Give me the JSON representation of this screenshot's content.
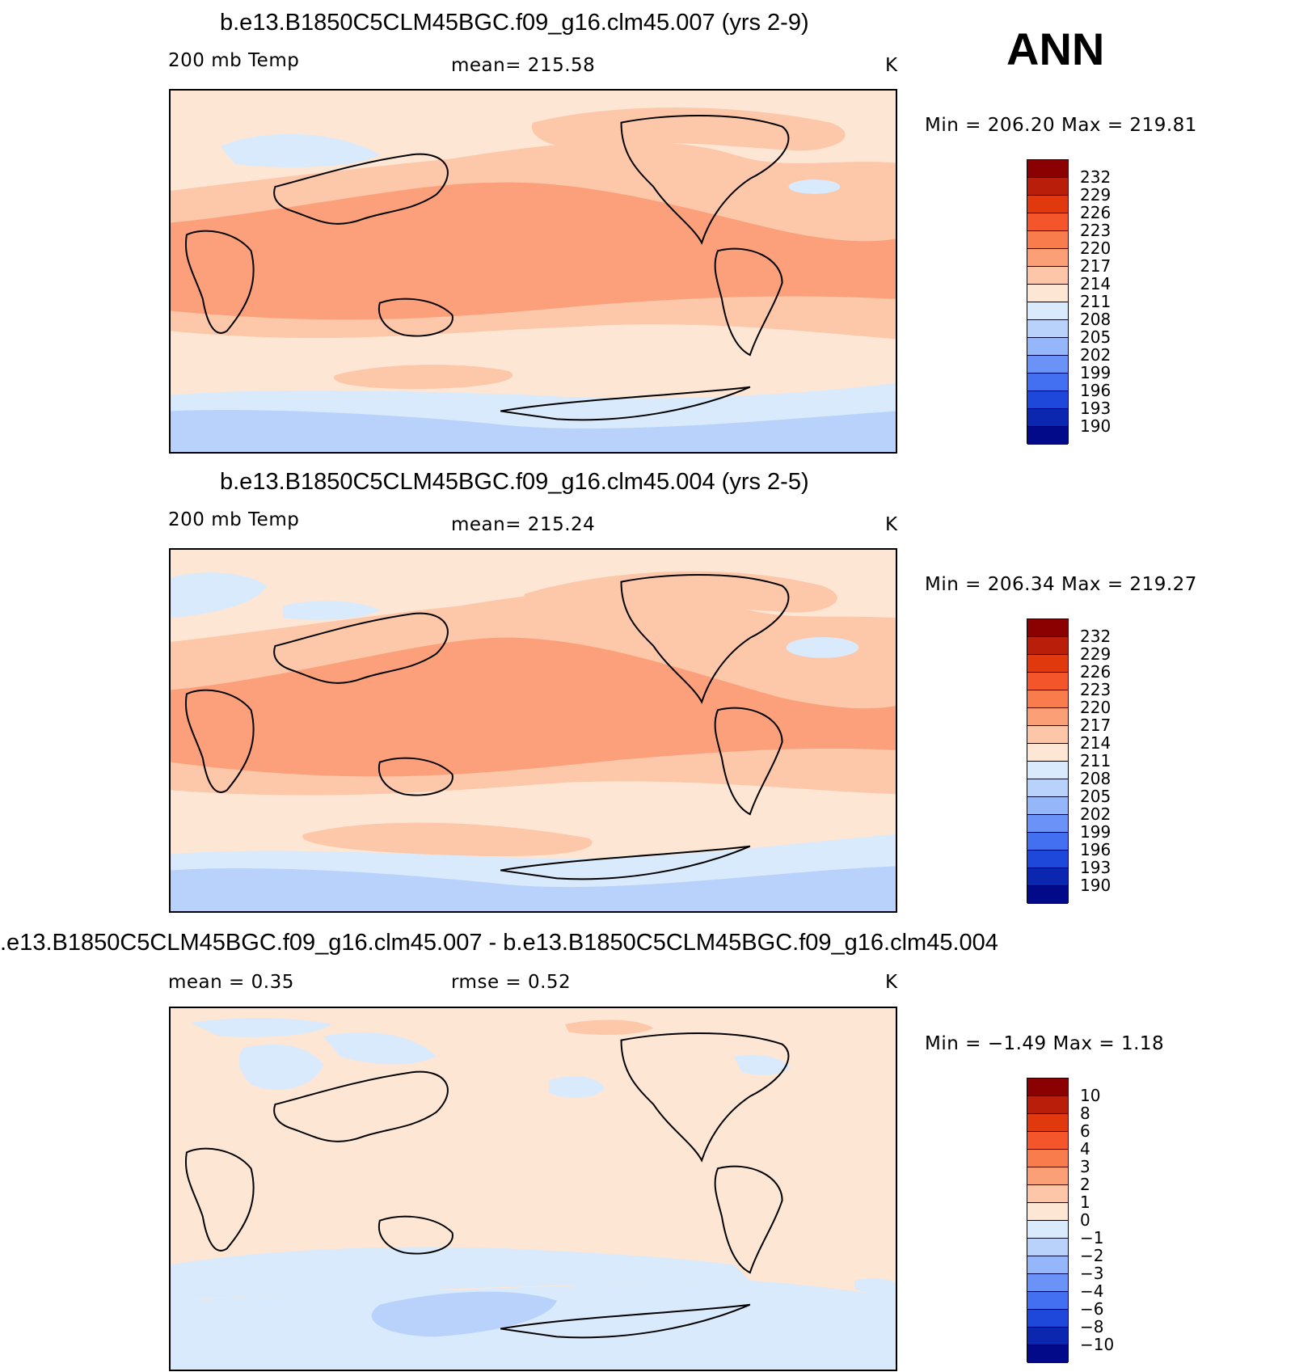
{
  "page_title": "ANN",
  "panels": [
    {
      "title": "b.e13.B1850C5CLM45BGC.f09_g16.clm45.007 (yrs 2-9)",
      "variable": "200 mb Temp",
      "stat": "mean=  215.58",
      "units": "K",
      "minmax": "Min  =  206.20  Max  =  219.81"
    },
    {
      "title": "b.e13.B1850C5CLM45BGC.f09_g16.clm45.004 (yrs 2-5)",
      "variable": "200 mb Temp",
      "stat": "mean=  215.24",
      "units": "K",
      "minmax": "Min  =  206.34  Max  =  219.27"
    },
    {
      "title": ".e13.B1850C5CLM45BGC.f09_g16.clm45.007 - b.e13.B1850C5CLM45BGC.f09_g16.clm45.004",
      "mean": "mean  =      0.35",
      "rmse": "rmse  =      0.52",
      "units": "K",
      "minmax": "Min  =    −1.49  Max  =      1.18"
    }
  ],
  "colorbar_abs": {
    "labels": [
      "232",
      "229",
      "226",
      "223",
      "220",
      "217",
      "214",
      "211",
      "208",
      "205",
      "202",
      "199",
      "196",
      "193",
      "190"
    ],
    "colors": [
      "#8b0000",
      "#b81e0a",
      "#e1390e",
      "#f4552a",
      "#f87c4c",
      "#fb9f76",
      "#fdc6a8",
      "#fee6d4",
      "#d8eafc",
      "#b9d2fb",
      "#95b7fa",
      "#6b93f7",
      "#4270f0",
      "#1e48d9",
      "#0b27b0",
      "#020a8a"
    ]
  },
  "colorbar_diff": {
    "labels": [
      "10",
      "8",
      "6",
      "4",
      "3",
      "2",
      "1",
      "0",
      "−1",
      "−2",
      "−3",
      "−4",
      "−6",
      "−8",
      "−10"
    ],
    "colors": [
      "#8b0000",
      "#b81e0a",
      "#e1390e",
      "#f4552a",
      "#f87c4c",
      "#fb9f76",
      "#fdc6a8",
      "#fee6d4",
      "#d8eafc",
      "#b9d2fb",
      "#95b7fa",
      "#6b93f7",
      "#4270f0",
      "#1e48d9",
      "#0b27b0",
      "#020a8a"
    ]
  },
  "field_colors": {
    "warm_core": "#fba07a",
    "warm_mid": "#fdc7a9",
    "neutral": "#fee6d4",
    "cool": "#d8eafc",
    "cold": "#b9d2fb",
    "colder": "#95b7fa"
  }
}
